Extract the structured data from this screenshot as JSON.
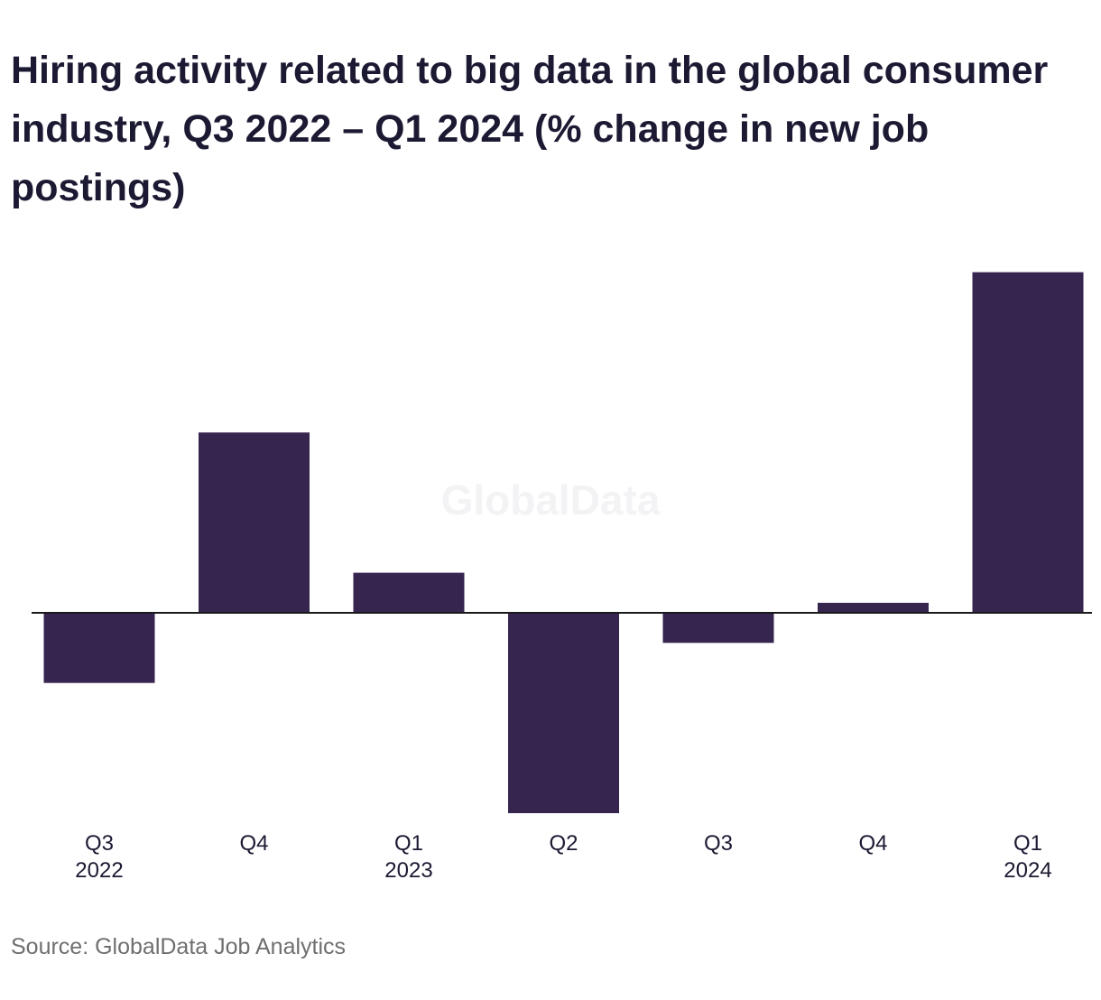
{
  "chart_data": {
    "type": "bar",
    "title": "Hiring activity related to big data in the global consumer industry, Q3 2022 – Q1 2024 (% change in new job postings)",
    "categories": [
      [
        "Q3",
        "2022"
      ],
      [
        "Q4"
      ],
      [
        "Q1",
        "2023"
      ],
      [
        "Q2"
      ],
      [
        "Q3"
      ],
      [
        "Q4"
      ],
      [
        "Q1",
        "2024"
      ]
    ],
    "values": [
      -7,
      18,
      4,
      -20,
      -3,
      1,
      34
    ],
    "ylim": [
      -20,
      34
    ],
    "bar_color": "#35254f",
    "baseline_color": "#1a1a1a",
    "source": "Source: GlobalData Job Analytics",
    "watermark": "GlobalData"
  }
}
